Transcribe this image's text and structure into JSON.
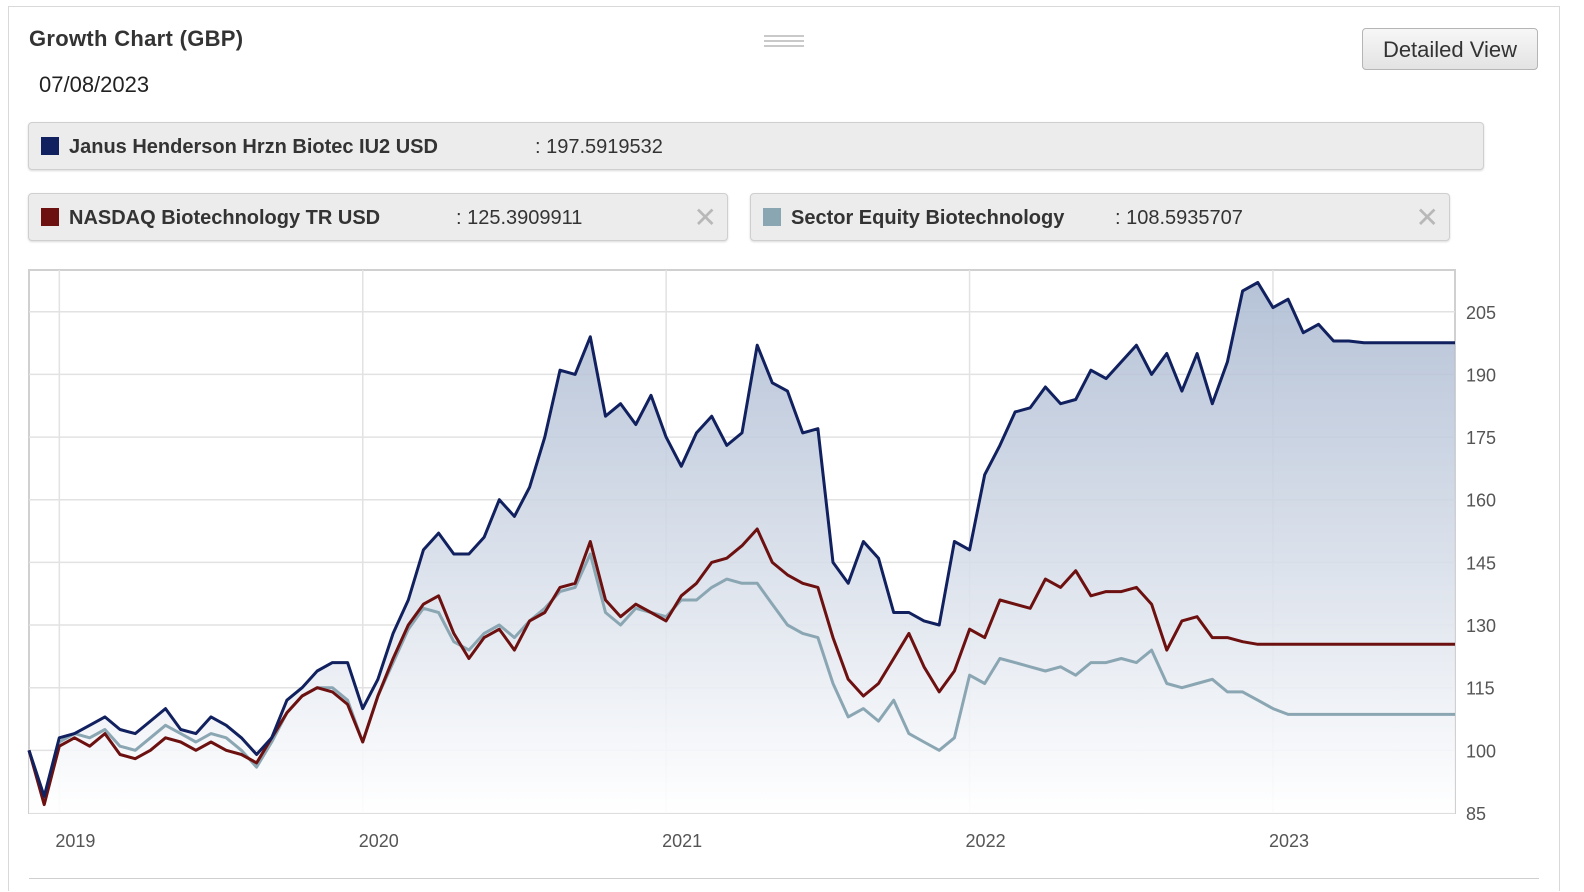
{
  "header": {
    "title": "Growth Chart (GBP)",
    "date": "07/08/2023",
    "detailed_view_label": "Detailed View",
    "close_glyph": "✕"
  },
  "legend": [
    {
      "name": "Janus Henderson Hrzn Biotec IU2 USD",
      "value": ": 197.5919532",
      "color": "#11205e",
      "closable": false
    },
    {
      "name": "NASDAQ Biotechnology TR USD",
      "value": ": 125.3909911",
      "color": "#6d1010",
      "closable": true
    },
    {
      "name": "Sector Equity Biotechnology",
      "value": ": 108.5935707",
      "color": "#8ba6b3",
      "closable": true
    }
  ],
  "chart_data": {
    "type": "line",
    "title": "Growth Chart (GBP)",
    "xlabel": "",
    "ylabel": "",
    "ylim": [
      85,
      215
    ],
    "yticks": [
      85,
      100,
      115,
      130,
      145,
      160,
      175,
      190,
      205
    ],
    "xticks": [
      "2019",
      "2020",
      "2021",
      "2022",
      "2023"
    ],
    "xlim": [
      2018.9,
      2023.6
    ],
    "grid": true,
    "x": [
      2018.9,
      2018.95,
      2019.0,
      2019.05,
      2019.1,
      2019.15,
      2019.2,
      2019.25,
      2019.3,
      2019.35,
      2019.4,
      2019.45,
      2019.5,
      2019.55,
      2019.6,
      2019.65,
      2019.7,
      2019.75,
      2019.8,
      2019.85,
      2019.9,
      2019.95,
      2020.0,
      2020.05,
      2020.1,
      2020.15,
      2020.2,
      2020.25,
      2020.3,
      2020.35,
      2020.4,
      2020.45,
      2020.5,
      2020.55,
      2020.6,
      2020.65,
      2020.7,
      2020.75,
      2020.8,
      2020.85,
      2020.9,
      2020.95,
      2021.0,
      2021.05,
      2021.1,
      2021.15,
      2021.2,
      2021.25,
      2021.3,
      2021.35,
      2021.4,
      2021.45,
      2021.5,
      2021.55,
      2021.6,
      2021.65,
      2021.7,
      2021.75,
      2021.8,
      2021.85,
      2021.9,
      2021.95,
      2022.0,
      2022.05,
      2022.1,
      2022.15,
      2022.2,
      2022.25,
      2022.3,
      2022.35,
      2022.4,
      2022.45,
      2022.5,
      2022.55,
      2022.6,
      2022.65,
      2022.7,
      2022.75,
      2022.8,
      2022.85,
      2022.9,
      2022.95,
      2023.0,
      2023.05,
      2023.1,
      2023.15,
      2023.2,
      2023.25,
      2023.3,
      2023.35,
      2023.4,
      2023.45,
      2023.5,
      2023.55,
      2023.6
    ],
    "series": [
      {
        "name": "Janus Henderson Hrzn Biotec IU2 USD",
        "color": "#11205e",
        "fill": true,
        "values": [
          100,
          89,
          103,
          104,
          106,
          108,
          105,
          104,
          107,
          110,
          105,
          104,
          108,
          106,
          103,
          99,
          103,
          112,
          115,
          119,
          121,
          121,
          110,
          117,
          128,
          136,
          148,
          152,
          147,
          147,
          151,
          160,
          156,
          163,
          175,
          191,
          190,
          199,
          180,
          183,
          178,
          185,
          175,
          168,
          176,
          180,
          173,
          176,
          197,
          188,
          186,
          176,
          177,
          145,
          140,
          150,
          146,
          133,
          133,
          131,
          130,
          150,
          148,
          166,
          173,
          181,
          182,
          187,
          183,
          184,
          191,
          189,
          193,
          197,
          190,
          195,
          186,
          195,
          183,
          193,
          210,
          212,
          206,
          208,
          200,
          202,
          198,
          198,
          197.6,
          197.6,
          197.6,
          197.6,
          197.6,
          197.6,
          197.6
        ]
      },
      {
        "name": "NASDAQ Biotechnology TR USD",
        "color": "#6d1010",
        "values": [
          100,
          87,
          101,
          103,
          101,
          104,
          99,
          98,
          100,
          103,
          102,
          100,
          102,
          100,
          99,
          97,
          103,
          109,
          113,
          115,
          114,
          111,
          102,
          113,
          122,
          130,
          135,
          137,
          128,
          122,
          127,
          129,
          124,
          131,
          133,
          139,
          140,
          150,
          136,
          132,
          135,
          133,
          131,
          137,
          140,
          145,
          146,
          149,
          153,
          145,
          142,
          140,
          139,
          127,
          117,
          113,
          116,
          122,
          128,
          120,
          114,
          119,
          129,
          127,
          136,
          135,
          134,
          141,
          139,
          143,
          137,
          138,
          138,
          139,
          135,
          124,
          131,
          132,
          127,
          127,
          126,
          125.4,
          125.4,
          125.4,
          125.4,
          125.4,
          125.4,
          125.4,
          125.4,
          125.4,
          125.4,
          125.4,
          125.4,
          125.4,
          125.4
        ]
      },
      {
        "name": "Sector Equity Biotechnology",
        "color": "#8ba6b3",
        "values": [
          100,
          88,
          102,
          104,
          103,
          105,
          101,
          100,
          103,
          106,
          104,
          102,
          104,
          103,
          100,
          96,
          102,
          109,
          113,
          115,
          115,
          112,
          102,
          113,
          121,
          129,
          134,
          133,
          126,
          124,
          128,
          130,
          127,
          131,
          134,
          138,
          139,
          147,
          133,
          130,
          134,
          133,
          132,
          136,
          136,
          139,
          141,
          140,
          140,
          135,
          130,
          128,
          127,
          116,
          108,
          110,
          107,
          112,
          104,
          102,
          100,
          103,
          118,
          116,
          122,
          121,
          120,
          119,
          120,
          118,
          121,
          121,
          122,
          121,
          124,
          116,
          115,
          116,
          117,
          114,
          114,
          112,
          110,
          108.6,
          108.6,
          108.6,
          108.6,
          108.6,
          108.6,
          108.6,
          108.6,
          108.6,
          108.6,
          108.6,
          108.6
        ]
      }
    ]
  }
}
